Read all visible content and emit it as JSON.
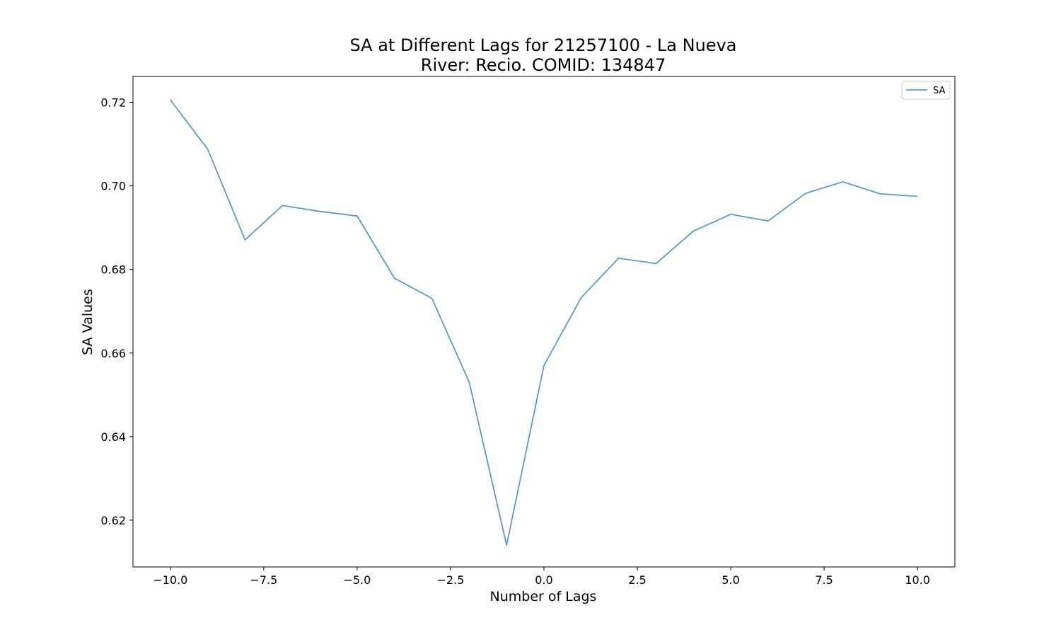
{
  "chart_data": {
    "type": "line",
    "title_lines": [
      "SA at Different Lags for 21257100 - La Nueva",
      "River: Recio. COMID: 134847"
    ],
    "xlabel": "Number of Lags",
    "ylabel": "SA Values",
    "xlim": [
      -11,
      11
    ],
    "ylim": [
      0.6088,
      0.7262
    ],
    "x_ticks": [
      -10.0,
      -7.5,
      -5.0,
      -2.5,
      0.0,
      2.5,
      5.0,
      7.5,
      10.0
    ],
    "x_tick_labels": [
      "−10.0",
      "−7.5",
      "−5.0",
      "−2.5",
      "0.0",
      "2.5",
      "5.0",
      "7.5",
      "10.0"
    ],
    "y_ticks": [
      0.62,
      0.64,
      0.66,
      0.68,
      0.7,
      0.72
    ],
    "y_tick_labels": [
      "0.62",
      "0.64",
      "0.66",
      "0.68",
      "0.70",
      "0.72"
    ],
    "grid": false,
    "legend_position": "top-right",
    "series": [
      {
        "name": "SA",
        "color": "#5b9bc9",
        "x": [
          -10,
          -9,
          -8,
          -7,
          -6,
          -5,
          -4,
          -3,
          -2,
          -1,
          0,
          1,
          2,
          3,
          4,
          5,
          6,
          7,
          8,
          9,
          10
        ],
        "y": [
          0.7206,
          0.7088,
          0.6871,
          0.6953,
          0.6939,
          0.6928,
          0.6779,
          0.6731,
          0.653,
          0.614,
          0.657,
          0.6733,
          0.6827,
          0.6814,
          0.6892,
          0.6932,
          0.6916,
          0.6982,
          0.701,
          0.6981,
          0.6975
        ]
      }
    ]
  }
}
